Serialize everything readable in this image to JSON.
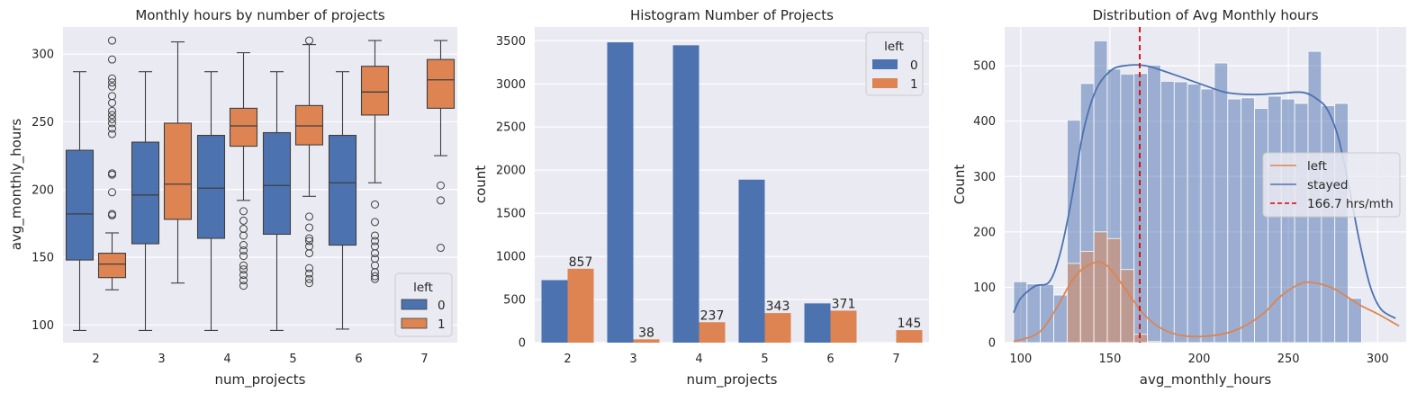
{
  "colors": {
    "blue": "#4c72b0",
    "orange": "#dd8452",
    "panel_bg": "#eaeaf2",
    "grid": "#ffffff",
    "mean_line": "#e00000"
  },
  "chart_data": [
    {
      "type": "box",
      "title": "Monthly hours by number of projects",
      "xlabel": "num_projects",
      "ylabel": "avg_monthly_hours",
      "categories": [
        "2",
        "3",
        "4",
        "5",
        "6",
        "7"
      ],
      "ylim": [
        87,
        320
      ],
      "yticks": [
        100,
        150,
        200,
        250,
        300
      ],
      "legend": {
        "title": "left",
        "position": "lower-right",
        "entries": [
          "0",
          "1"
        ]
      },
      "series": [
        {
          "name": "0",
          "boxes": [
            {
              "category": "2",
              "whislo": 96,
              "q1": 148,
              "median": 182,
              "q3": 229,
              "whishi": 287,
              "fliers": []
            },
            {
              "category": "3",
              "whislo": 96,
              "q1": 160,
              "median": 196,
              "q3": 235,
              "whishi": 287,
              "fliers": []
            },
            {
              "category": "4",
              "whislo": 96,
              "q1": 164,
              "median": 201,
              "q3": 240,
              "whishi": 287,
              "fliers": []
            },
            {
              "category": "5",
              "whislo": 96,
              "q1": 167,
              "median": 203,
              "q3": 242,
              "whishi": 287,
              "fliers": []
            },
            {
              "category": "6",
              "whislo": 97,
              "q1": 159,
              "median": 205,
              "q3": 240,
              "whishi": 287,
              "fliers": []
            }
          ]
        },
        {
          "name": "1",
          "boxes": [
            {
              "category": "2",
              "whislo": 126,
              "q1": 135,
              "median": 145,
              "q3": 153,
              "whishi": 168,
              "fliers": [
                181,
                182,
                198,
                211,
                212,
                241,
                245,
                249,
                252,
                255,
                258,
                264,
                269,
                276,
                279,
                282,
                296,
                310
              ]
            },
            {
              "category": "3",
              "whislo": 131,
              "q1": 178,
              "median": 204,
              "q3": 249,
              "whishi": 309,
              "fliers": []
            },
            {
              "category": "4",
              "whislo": 192,
              "q1": 232,
              "median": 247,
              "q3": 260,
              "whishi": 301,
              "fliers": [
                129,
                133,
                137,
                141,
                144,
                151,
                155,
                159,
                166,
                171,
                177,
                184
              ]
            },
            {
              "category": "5",
              "whislo": 195,
              "q1": 233,
              "median": 247,
              "q3": 262,
              "whishi": 307,
              "fliers": [
                131,
                134,
                138,
                142,
                153,
                158,
                162,
                164,
                172,
                180,
                310
              ]
            },
            {
              "category": "6",
              "whislo": 205,
              "q1": 255,
              "median": 272,
              "q3": 291,
              "whishi": 310,
              "fliers": [
                134,
                136,
                139,
                144,
                149,
                153,
                158,
                162,
                166,
                176,
                189
              ]
            },
            {
              "category": "7",
              "whislo": 225,
              "q1": 260,
              "median": 281,
              "q3": 296,
              "whishi": 310,
              "fliers": [
                133,
                157,
                192,
                203
              ]
            }
          ]
        }
      ]
    },
    {
      "type": "bar",
      "title": "Histogram Number of Projects",
      "xlabel": "num_projects",
      "ylabel": "count",
      "categories": [
        "2",
        "3",
        "4",
        "5",
        "6",
        "7"
      ],
      "ylim": [
        0,
        3660
      ],
      "yticks": [
        0,
        500,
        1000,
        1500,
        2000,
        2500,
        3000,
        3500
      ],
      "legend": {
        "title": "left",
        "position": "top-right",
        "entries": [
          "0",
          "1"
        ]
      },
      "series": [
        {
          "name": "0",
          "values": [
            725,
            3482,
            3448,
            1890,
            455,
            0
          ]
        },
        {
          "name": "1",
          "values": [
            857,
            38,
            237,
            343,
            371,
            145
          ]
        }
      ],
      "data_labels": [
        "857",
        "38",
        "237",
        "343",
        "371",
        "145"
      ]
    },
    {
      "type": "histogram",
      "title": "Distribution of Avg Monthly hours",
      "xlabel": "avg_monthly_hours",
      "ylabel": "Count",
      "xlim": [
        91,
        316
      ],
      "ylim": [
        0,
        570
      ],
      "xticks": [
        100,
        150,
        200,
        250,
        300
      ],
      "yticks": [
        0,
        100,
        200,
        300,
        400,
        500
      ],
      "bin_edges": [
        96,
        103.5,
        111,
        118.5,
        126,
        133.5,
        141,
        148.5,
        156,
        163.5,
        171,
        178.5,
        186,
        193.5,
        201,
        208.5,
        216,
        223.5,
        231,
        238.5,
        246,
        253.5,
        261,
        268.5,
        276,
        283.5,
        291,
        298.5,
        306,
        313.5
      ],
      "series": [
        {
          "name": "stayed",
          "counts": [
            110,
            106,
            105,
            86,
            402,
            468,
            545,
            494,
            485,
            486,
            501,
            472,
            471,
            467,
            458,
            505,
            440,
            442,
            423,
            445,
            440,
            432,
            526,
            428,
            432,
            80,
            0,
            0,
            0
          ]
        },
        {
          "name": "left",
          "counts": [
            0,
            0,
            0,
            0,
            143,
            165,
            200,
            188,
            132,
            15,
            2,
            0,
            0,
            0,
            0,
            0,
            0,
            0,
            0,
            0,
            0,
            0,
            0,
            0,
            0,
            0,
            0,
            0,
            0
          ]
        }
      ],
      "kde": [
        {
          "name": "left",
          "points": [
            [
              96,
              2
            ],
            [
              110,
              18
            ],
            [
              120,
              62
            ],
            [
              130,
              118
            ],
            [
              140,
              143
            ],
            [
              148,
              140
            ],
            [
              158,
              100
            ],
            [
              168,
              55
            ],
            [
              178,
              27
            ],
            [
              190,
              13
            ],
            [
              205,
              12
            ],
            [
              220,
              22
            ],
            [
              235,
              50
            ],
            [
              245,
              82
            ],
            [
              255,
              104
            ],
            [
              262,
              109
            ],
            [
              275,
              98
            ],
            [
              290,
              68
            ],
            [
              300,
              52
            ],
            [
              312,
              30
            ]
          ]
        },
        {
          "name": "stayed",
          "points": [
            [
              96,
              54
            ],
            [
              100,
              80
            ],
            [
              108,
              102
            ],
            [
              116,
              110
            ],
            [
              122,
              160
            ],
            [
              128,
              250
            ],
            [
              135,
              380
            ],
            [
              142,
              455
            ],
            [
              150,
              490
            ],
            [
              158,
              500
            ],
            [
              170,
              500
            ],
            [
              185,
              485
            ],
            [
              200,
              468
            ],
            [
              215,
              452
            ],
            [
              230,
              448
            ],
            [
              245,
              450
            ],
            [
              258,
              452
            ],
            [
              266,
              440
            ],
            [
              272,
              420
            ],
            [
              278,
              370
            ],
            [
              284,
              280
            ],
            [
              290,
              180
            ],
            [
              296,
              100
            ],
            [
              302,
              60
            ],
            [
              310,
              44
            ]
          ]
        }
      ],
      "mean_line": {
        "x": 166.7,
        "label": "166.7 hrs/mth"
      },
      "legend": {
        "position": "center-right",
        "entries": [
          "left",
          "stayed",
          "166.7 hrs/mth"
        ]
      }
    }
  ]
}
